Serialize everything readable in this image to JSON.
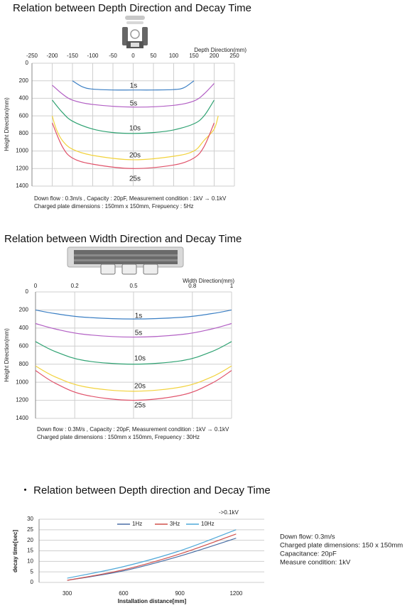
{
  "chart_data": [
    {
      "type": "line",
      "title": "Relation between Depth Direction and Decay Time",
      "x_label": "Depth Direction(mm)",
      "y_label": "Height Direction(mm)",
      "xlim": [
        -250,
        250
      ],
      "xticks": [
        -250,
        -200,
        -150,
        -100,
        -50,
        0,
        50,
        100,
        150,
        200,
        250
      ],
      "ylim": [
        0,
        1400
      ],
      "yticks": [
        0,
        200,
        400,
        600,
        800,
        1000,
        1200,
        1400
      ],
      "y_inverted": true,
      "x_axis_position": "top",
      "grid": "both",
      "series_labels": "inline",
      "series": [
        {
          "name": "1s",
          "color": "#3b7fc4",
          "x": [
            -150,
            -125,
            -100,
            -50,
            0,
            50,
            100,
            125,
            150
          ],
          "values": [
            200,
            270,
            295,
            305,
            305,
            305,
            300,
            280,
            200
          ]
        },
        {
          "name": "5s",
          "color": "#b25fc4",
          "x": [
            -200,
            -175,
            -150,
            -100,
            0,
            100,
            150,
            175,
            200
          ],
          "values": [
            250,
            350,
            420,
            470,
            500,
            480,
            430,
            350,
            230
          ]
        },
        {
          "name": "10s",
          "color": "#2fa272",
          "x": [
            -200,
            -175,
            -150,
            -100,
            -50,
            0,
            50,
            100,
            150,
            175,
            200
          ],
          "values": [
            420,
            560,
            660,
            750,
            790,
            800,
            790,
            760,
            690,
            600,
            420
          ]
        },
        {
          "name": "20s",
          "color": "#f2d23c",
          "x": [
            -200,
            -190,
            -175,
            -150,
            -100,
            0,
            100,
            150,
            175,
            200,
            210
          ],
          "values": [
            600,
            750,
            880,
            980,
            1050,
            1100,
            1060,
            1000,
            880,
            750,
            600
          ]
        },
        {
          "name": "25s",
          "color": "#e0526a",
          "x": [
            -200,
            -175,
            -150,
            -100,
            0,
            100,
            150,
            175,
            200
          ],
          "values": [
            680,
            950,
            1080,
            1150,
            1200,
            1160,
            1080,
            950,
            680
          ]
        }
      ],
      "notes": [
        "Down flow : 0.3m/s , Capacity : 20pF, Measurement condition : 1kV → 0.1kV",
        "Charged plate dimensions : 150mm x 150mm, Frepuency : 5Hz"
      ]
    },
    {
      "type": "line",
      "title": "Relation between Width Direction and Decay Time",
      "x_label": "Width Direction(mm)",
      "y_label": "Height Direction(mm)",
      "xlim": [
        0,
        1
      ],
      "xticks": [
        0,
        0.2,
        0.5,
        0.8,
        1
      ],
      "ylim": [
        0,
        1400
      ],
      "yticks": [
        0,
        200,
        400,
        600,
        800,
        1000,
        1200,
        1400
      ],
      "y_inverted": true,
      "x_axis_position": "top",
      "grid": "both",
      "series_labels": "inline",
      "series": [
        {
          "name": "1s",
          "color": "#3b7fc4",
          "x": [
            0,
            0.1,
            0.25,
            0.5,
            0.75,
            0.9,
            1
          ],
          "values": [
            200,
            240,
            280,
            300,
            280,
            240,
            200
          ]
        },
        {
          "name": "5s",
          "color": "#b25fc4",
          "x": [
            0,
            0.1,
            0.25,
            0.5,
            0.75,
            0.9,
            1
          ],
          "values": [
            350,
            410,
            470,
            500,
            470,
            410,
            350
          ]
        },
        {
          "name": "10s",
          "color": "#2fa272",
          "x": [
            0,
            0.1,
            0.25,
            0.5,
            0.75,
            0.9,
            1
          ],
          "values": [
            550,
            660,
            760,
            800,
            760,
            660,
            550
          ]
        },
        {
          "name": "20s",
          "color": "#f2d23c",
          "x": [
            0,
            0.1,
            0.25,
            0.5,
            0.75,
            0.9,
            1
          ],
          "values": [
            820,
            940,
            1050,
            1100,
            1050,
            940,
            820
          ]
        },
        {
          "name": "25s",
          "color": "#e0526a",
          "x": [
            0,
            0.1,
            0.25,
            0.5,
            0.75,
            0.9,
            1
          ],
          "values": [
            870,
            1010,
            1140,
            1200,
            1140,
            1010,
            870
          ]
        }
      ],
      "notes": [
        "Down flow : 0.3M/s , Capacity : 20pF, Measurement condition : 1kV → 0.1kV",
        "Charged plate dimensions : 150mm x 150mm, Frepuency : 30Hz"
      ]
    },
    {
      "type": "line",
      "title": "・ Relation between Depth direction and Decay Time",
      "annotation": "->0.1kV",
      "x_label": "Installation distance[mm]",
      "y_label": "decay time[sec]",
      "categories": [
        300,
        600,
        900,
        1200
      ],
      "ylim": [
        0,
        30
      ],
      "yticks": [
        0,
        5,
        10,
        15,
        20,
        25,
        30
      ],
      "grid": "y",
      "legend": "top",
      "series": [
        {
          "name": "1Hz",
          "color": "#4a6fa5",
          "values": [
            1,
            5.5,
            12.5,
            21
          ]
        },
        {
          "name": "3Hz",
          "color": "#d0504c",
          "values": [
            1,
            6,
            13.5,
            23
          ]
        },
        {
          "name": "10Hz",
          "color": "#4fa8d8",
          "values": [
            2,
            7.5,
            15,
            25
          ]
        }
      ],
      "notes": [
        "Down flow: 0.3m/s",
        "Charged plate dimensions: 150 x 150mm",
        "Capacitance: 20pF",
        "Measure condition: 1kV"
      ]
    }
  ]
}
